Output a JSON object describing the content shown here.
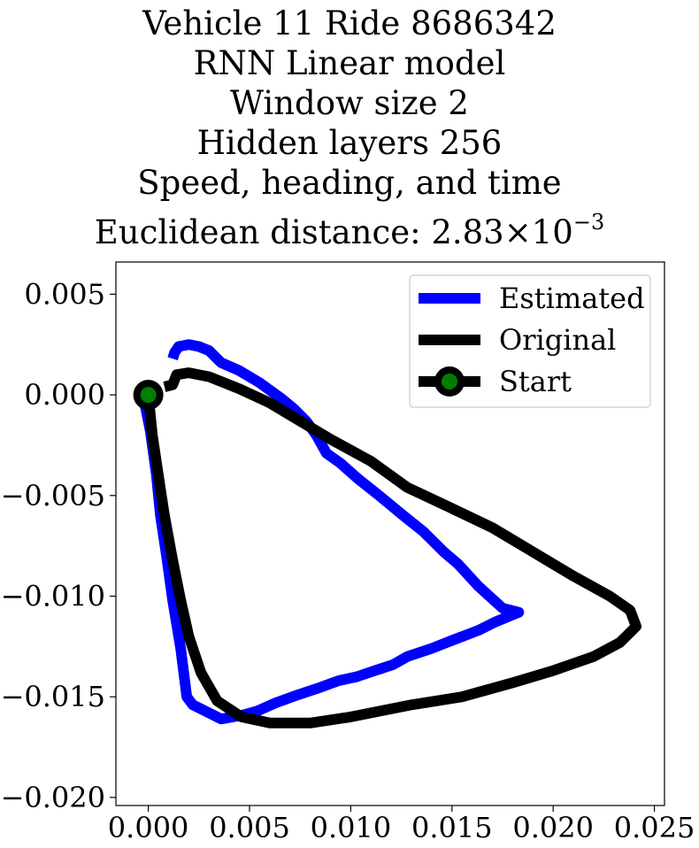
{
  "chart_data": {
    "type": "line",
    "title_lines": [
      "Vehicle 11 Ride 8686342",
      "RNN Linear model",
      "Window size 2",
      "Hidden layers 256",
      "Speed, heading, and time"
    ],
    "title_distance": {
      "prefix": "Euclidean distance: ",
      "mantissa": "2.83",
      "times": "×10",
      "exponent": "−3"
    },
    "xlabel": "",
    "ylabel": "",
    "xlim": [
      -0.0016,
      0.0255
    ],
    "ylim": [
      -0.0204,
      0.0066
    ],
    "x_ticks": [
      0.0,
      0.005,
      0.01,
      0.015,
      0.02,
      0.025
    ],
    "x_tick_labels": [
      "0.000",
      "0.005",
      "0.010",
      "0.015",
      "0.020",
      "0.025"
    ],
    "y_ticks": [
      0.005,
      0.0,
      -0.005,
      -0.01,
      -0.015,
      -0.02
    ],
    "y_tick_labels": [
      "0.005",
      "0.000",
      "−0.005",
      "−0.010",
      "−0.015",
      "−0.020"
    ],
    "grid": false,
    "legend_placement": "top-right",
    "series": [
      {
        "name": "Estimated",
        "color": "#0000ff",
        "points": [
          [
            -0.0002,
            -0.0003
          ],
          [
            0.0001,
            -0.0018
          ],
          [
            0.0004,
            -0.004
          ],
          [
            0.0006,
            -0.006
          ],
          [
            0.0009,
            -0.008
          ],
          [
            0.0012,
            -0.0102
          ],
          [
            0.0016,
            -0.0126
          ],
          [
            0.0019,
            -0.015
          ],
          [
            0.0022,
            -0.0154
          ],
          [
            0.003,
            -0.0158
          ],
          [
            0.0036,
            -0.0161
          ],
          [
            0.0047,
            -0.0159
          ],
          [
            0.0054,
            -0.0157
          ],
          [
            0.0063,
            -0.0153
          ],
          [
            0.0074,
            -0.0149
          ],
          [
            0.0083,
            -0.0146
          ],
          [
            0.0094,
            -0.0142
          ],
          [
            0.0103,
            -0.014
          ],
          [
            0.0112,
            -0.0137
          ],
          [
            0.0121,
            -0.0134
          ],
          [
            0.0128,
            -0.013
          ],
          [
            0.014,
            -0.0126
          ],
          [
            0.015,
            -0.0122
          ],
          [
            0.0163,
            -0.0117
          ],
          [
            0.0171,
            -0.0113
          ],
          [
            0.0183,
            -0.0108
          ],
          [
            0.0175,
            -0.0106
          ],
          [
            0.0163,
            -0.0095
          ],
          [
            0.0153,
            -0.0084
          ],
          [
            0.0146,
            -0.0078
          ],
          [
            0.0136,
            -0.0068
          ],
          [
            0.0126,
            -0.006
          ],
          [
            0.0114,
            -0.005
          ],
          [
            0.0104,
            -0.0042
          ],
          [
            0.0095,
            -0.0034
          ],
          [
            0.0088,
            -0.0029
          ],
          [
            0.0083,
            -0.002
          ],
          [
            0.0078,
            -0.0013
          ],
          [
            0.0072,
            -0.0007
          ],
          [
            0.0066,
            -0.0002
          ],
          [
            0.0055,
            0.0006
          ],
          [
            0.0045,
            0.0012
          ],
          [
            0.0036,
            0.0016
          ],
          [
            0.003,
            0.0022
          ],
          [
            0.0025,
            0.0024
          ],
          [
            0.002,
            0.0025
          ],
          [
            0.0015,
            0.0024
          ],
          [
            0.0013,
            0.0021
          ],
          [
            0.0012,
            0.0018
          ]
        ]
      },
      {
        "name": "Original",
        "color": "#000000",
        "points": [
          [
            0.0,
            0.0
          ],
          [
            0.0002,
            -0.002
          ],
          [
            0.0005,
            -0.004
          ],
          [
            0.0008,
            -0.006
          ],
          [
            0.0012,
            -0.0082
          ],
          [
            0.0016,
            -0.0102
          ],
          [
            0.002,
            -0.012
          ],
          [
            0.0026,
            -0.0138
          ],
          [
            0.0034,
            -0.0152
          ],
          [
            0.0046,
            -0.016
          ],
          [
            0.006,
            -0.0163
          ],
          [
            0.008,
            -0.0163
          ],
          [
            0.01,
            -0.016
          ],
          [
            0.013,
            -0.0154
          ],
          [
            0.0155,
            -0.015
          ],
          [
            0.018,
            -0.0143
          ],
          [
            0.02,
            -0.0137
          ],
          [
            0.022,
            -0.013
          ],
          [
            0.0233,
            -0.0123
          ],
          [
            0.0241,
            -0.0115
          ],
          [
            0.0238,
            -0.0107
          ],
          [
            0.0228,
            -0.01
          ],
          [
            0.021,
            -0.009
          ],
          [
            0.019,
            -0.0078
          ],
          [
            0.017,
            -0.0066
          ],
          [
            0.0145,
            -0.0054
          ],
          [
            0.0128,
            -0.0046
          ],
          [
            0.011,
            -0.0033
          ],
          [
            0.009,
            -0.0022
          ],
          [
            0.0075,
            -0.0013
          ],
          [
            0.006,
            -0.0004
          ],
          [
            0.0045,
            0.0003
          ],
          [
            0.003,
            0.0009
          ],
          [
            0.002,
            0.0011
          ],
          [
            0.0014,
            0.001
          ],
          [
            0.0012,
            0.0005
          ],
          [
            0.0008,
            0.0004
          ]
        ]
      }
    ],
    "start_marker": {
      "name": "Start",
      "point": [
        0.0,
        0.0
      ],
      "edge_color": "#000000",
      "face_color": "#008000"
    }
  }
}
